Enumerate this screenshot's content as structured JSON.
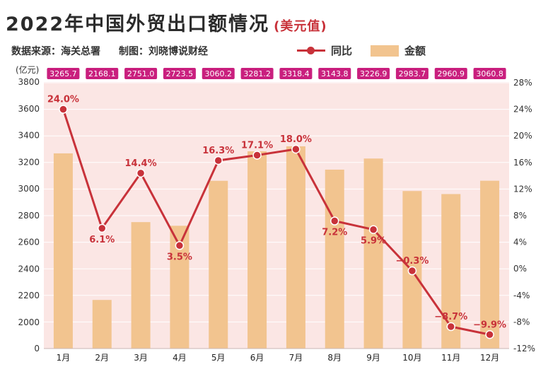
{
  "header": {
    "title": "2022年中国外贸出口额情况",
    "title_unit": "(美元值)",
    "source": "数据来源：海关总署",
    "author": "制图：刘晓博说财经"
  },
  "legend": {
    "line_label": "同比",
    "bar_label": "金额"
  },
  "unit_label": "(亿元)",
  "colors": {
    "bar": "#f2c48f",
    "line": "#c8323a",
    "badge": "#c91f7e",
    "plot_bg": "#fbe6e4"
  },
  "chart_data": {
    "type": "bar",
    "title": "2022年中国外贸出口额情况",
    "categories": [
      "1月",
      "2月",
      "3月",
      "4月",
      "5月",
      "6月",
      "7月",
      "8月",
      "9月",
      "10月",
      "11月",
      "12月"
    ],
    "series": [
      {
        "name": "金额",
        "type": "bar",
        "axis": "left",
        "values": [
          3265.7,
          2168.1,
          2751.0,
          2723.5,
          3060.2,
          3281.2,
          3318.4,
          3143.8,
          3226.9,
          2983.7,
          2960.9,
          3060.8
        ],
        "labels": [
          "3265.7",
          "2168.1",
          "2751.0",
          "2723.5",
          "3060.2",
          "3281.2",
          "3318.4",
          "3143.8",
          "3226.9",
          "2983.7",
          "2960.9",
          "3060.8"
        ]
      },
      {
        "name": "同比",
        "type": "line",
        "axis": "right",
        "values": [
          24.0,
          6.1,
          14.4,
          3.5,
          16.3,
          17.1,
          18.0,
          7.2,
          5.9,
          -0.3,
          -8.7,
          -9.9
        ],
        "labels": [
          "24.0%",
          "6.1%",
          "14.4%",
          "3.5%",
          "16.3%",
          "17.1%",
          "18.0%",
          "7.2%",
          "5.9%",
          "−0.3%",
          "−8.7%",
          "−9.9%"
        ]
      }
    ],
    "left_axis": {
      "ticks": [
        0,
        2000,
        2200,
        2400,
        2600,
        2800,
        3000,
        3200,
        3400,
        3600,
        3800
      ]
    },
    "right_axis": {
      "range": [
        -12,
        28
      ],
      "ticks": [
        "-12%",
        "-8%",
        "-4%",
        "0%",
        "4%",
        "8%",
        "12%",
        "16%",
        "20%",
        "24%",
        "28%"
      ]
    },
    "grid": true,
    "legend_position": "top"
  }
}
